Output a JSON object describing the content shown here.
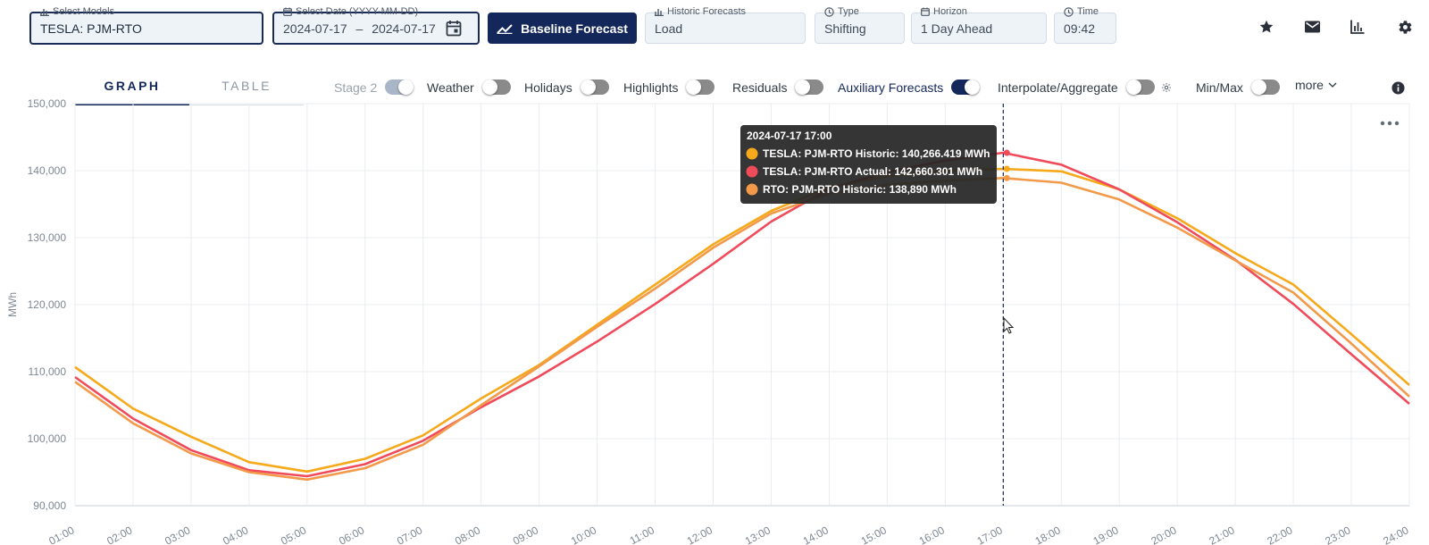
{
  "toolbar": {
    "models": {
      "label": "Select Models",
      "value": "TESLA: PJM-RTO"
    },
    "date": {
      "label": "Select Date (YYYY-MM-DD)",
      "start": "2024-07-17",
      "separator": "–",
      "end": "2024-07-17"
    },
    "baseline_button": "Baseline Forecast",
    "historic": {
      "label": "Historic Forecasts",
      "value": "Load"
    },
    "type": {
      "label": "Type",
      "value": "Shifting"
    },
    "horizon": {
      "label": "Horizon",
      "value": "1 Day Ahead"
    },
    "time": {
      "label": "Time",
      "value": "09:42"
    },
    "icons": [
      "star-icon",
      "mail-icon",
      "bar-chart-icon",
      "gear-icon"
    ]
  },
  "tabs": [
    {
      "label": "GRAPH",
      "active": true
    },
    {
      "label": "TABLE",
      "active": false
    }
  ],
  "toggles": {
    "stage2": {
      "label": "Stage 2",
      "on": true,
      "disabled": true
    },
    "weather": {
      "label": "Weather",
      "on": false
    },
    "holidays": {
      "label": "Holidays",
      "on": false
    },
    "highlights": {
      "label": "Highlights",
      "on": false
    },
    "residuals": {
      "label": "Residuals",
      "on": false
    },
    "auxiliary": {
      "label": "Auxiliary Forecasts",
      "on": true
    },
    "interpolate": {
      "label": "Interpolate/Aggregate",
      "on": false
    },
    "minmax": {
      "label": "Min/Max",
      "on": false
    },
    "more": "more"
  },
  "colors": {
    "primary": "#14275a",
    "series_historic": "#f5a91b",
    "series_actual": "#ef4b5b",
    "series_rto": "#f2994a"
  },
  "chart_data": {
    "type": "line",
    "xlabel": "",
    "ylabel": "MWh",
    "ylim": [
      90000,
      150000
    ],
    "yticks": [
      "90,000",
      "100,000",
      "110,000",
      "120,000",
      "130,000",
      "140,000",
      "150,000"
    ],
    "x": [
      "01:00",
      "02:00",
      "03:00",
      "04:00",
      "05:00",
      "06:00",
      "07:00",
      "08:00",
      "09:00",
      "10:00",
      "11:00",
      "12:00",
      "13:00",
      "14:00",
      "15:00",
      "16:00",
      "17:00",
      "18:00",
      "19:00",
      "20:00",
      "21:00",
      "22:00",
      "23:00",
      "24:00"
    ],
    "grid": true,
    "series": [
      {
        "name": "TESLA: PJM-RTO Historic",
        "color": "#f5a91b",
        "values": [
          110700,
          104500,
          100300,
          96500,
          95100,
          97000,
          100500,
          106000,
          111000,
          117000,
          123000,
          129000,
          134000,
          137500,
          139200,
          140000,
          140266.419,
          139900,
          137200,
          132900,
          127700,
          123000,
          115600,
          108000
        ]
      },
      {
        "name": "TESLA: PJM-RTO Actual",
        "color": "#ef4b5b",
        "values": [
          109200,
          103000,
          98300,
          95300,
          94400,
          96200,
          99700,
          104700,
          109300,
          114500,
          120100,
          126100,
          132400,
          137300,
          139800,
          141500,
          142660.301,
          140900,
          137200,
          132300,
          126700,
          120100,
          112600,
          105200
        ]
      },
      {
        "name": "RTO: PJM-RTO Historic",
        "color": "#f2994a",
        "values": [
          108500,
          102300,
          97800,
          95000,
          93900,
          95600,
          99100,
          105000,
          110800,
          116700,
          122400,
          128500,
          133600,
          136600,
          137900,
          138500,
          138890,
          138200,
          135700,
          131500,
          126600,
          121800,
          114200,
          106300
        ]
      }
    ],
    "crosshair_x": "17:00",
    "tooltip": {
      "title": "2024-07-17 17:00",
      "rows": [
        {
          "text": "TESLA: PJM-RTO Historic: 140,266.419 MWh",
          "color": "#f5a91b"
        },
        {
          "text": "TESLA: PJM-RTO Actual: 142,660.301 MWh",
          "color": "#ef4b5b"
        },
        {
          "text": "RTO: PJM-RTO Historic: 138,890 MWh",
          "color": "#f2994a"
        }
      ]
    }
  }
}
